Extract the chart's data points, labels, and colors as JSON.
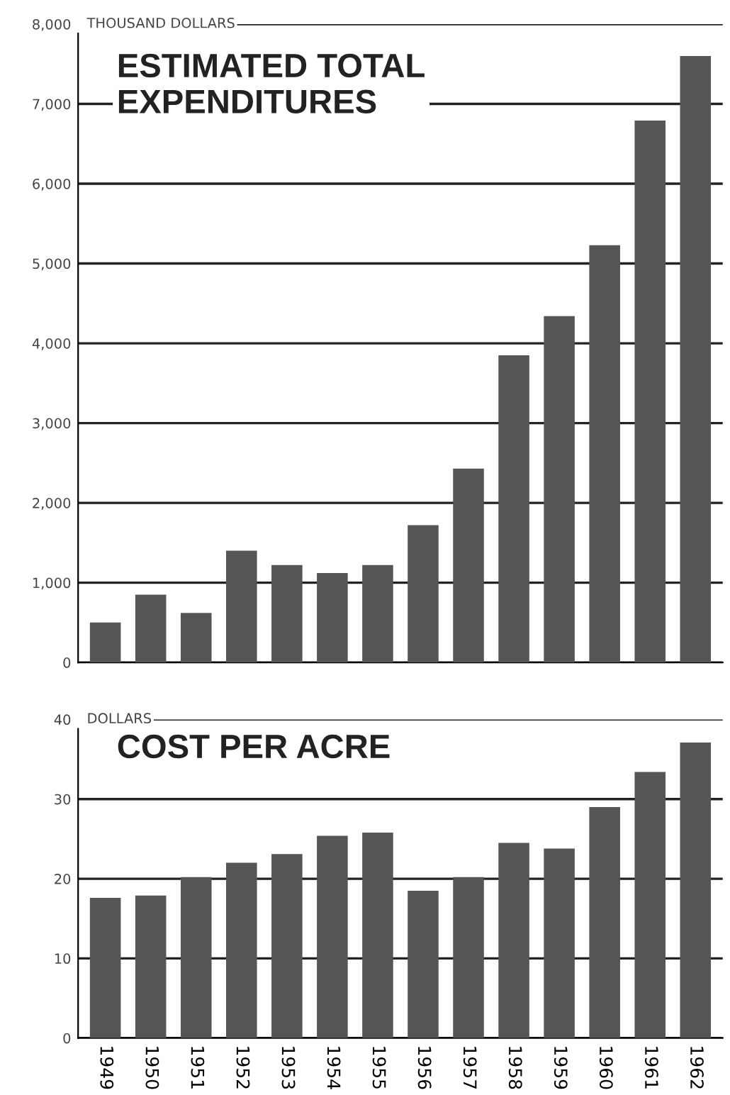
{
  "chart_data": [
    {
      "type": "bar",
      "title": "ESTIMATED TOTAL\nEXPENDITURES",
      "ylabel": "THOUSAND DOLLARS",
      "categories": [
        "1949",
        "1950",
        "1951",
        "1952",
        "1953",
        "1954",
        "1955",
        "1956",
        "1957",
        "1958",
        "1959",
        "1960",
        "1961",
        "1962"
      ],
      "values": [
        500,
        850,
        620,
        1400,
        1220,
        1120,
        1220,
        1720,
        2430,
        3850,
        4340,
        5230,
        6790,
        7600
      ],
      "color": "#555555",
      "ylim": [
        0,
        8000
      ],
      "yticks": [
        0,
        {
          "value": 1000,
          "label": "1,000"
        },
        {
          "value": 2000,
          "label": "2,000"
        },
        {
          "value": 3000,
          "label": "3,000"
        },
        {
          "value": 4000,
          "label": "4,000"
        },
        {
          "value": 5000,
          "label": "5,000"
        },
        {
          "value": 6000,
          "label": "6,000"
        },
        {
          "value": 7000,
          "label": "7,000"
        },
        {
          "value": 8000,
          "label": "8,000"
        }
      ],
      "grid": "y",
      "tick_labels": "y"
    },
    {
      "type": "bar",
      "title": "COST PER ACRE",
      "ylabel": "DOLLARS",
      "categories": [
        "1949",
        "1950",
        "1951",
        "1952",
        "1953",
        "1954",
        "1955",
        "1956",
        "1957",
        "1958",
        "1959",
        "1960",
        "1961",
        "1962"
      ],
      "values": [
        17.6,
        17.9,
        20.2,
        22,
        23.1,
        25.4,
        25.8,
        18.5,
        20.2,
        24.5,
        23.8,
        29,
        33.4,
        37.1
      ],
      "color": "#555555",
      "ylim": [
        0,
        40
      ],
      "yticks": [
        0,
        10,
        20,
        30,
        40
      ],
      "grid": "y"
    }
  ]
}
